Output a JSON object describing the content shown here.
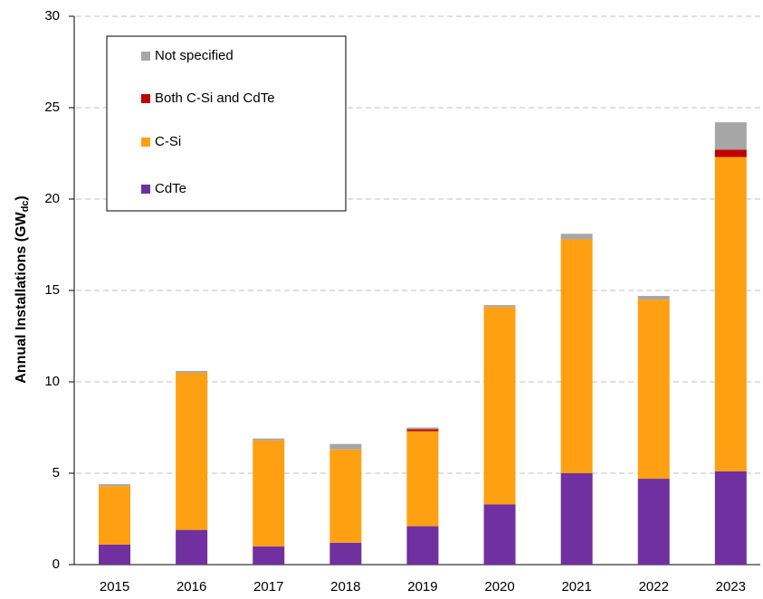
{
  "chart_data": {
    "type": "stacked_bar",
    "ylabel_parts": [
      "Annual Installations (GW",
      "dc",
      ")"
    ],
    "categories": [
      "2015",
      "2016",
      "2017",
      "2018",
      "2019",
      "2020",
      "2021",
      "2022",
      "2023"
    ],
    "series": [
      {
        "name": "CdTe",
        "color": "#7030a0",
        "values": [
          1.1,
          1.9,
          1.0,
          1.2,
          2.1,
          3.3,
          5.0,
          4.7,
          5.1
        ]
      },
      {
        "name": "C-Si",
        "color": "#ffa013",
        "values": [
          3.2,
          8.6,
          5.8,
          5.1,
          5.2,
          10.8,
          12.8,
          9.8,
          17.2
        ]
      },
      {
        "name": "Both C-Si and CdTe",
        "color": "#c00000",
        "values": [
          0,
          0,
          0,
          0,
          0.1,
          0,
          0,
          0,
          0.4
        ]
      },
      {
        "name": "Not specified",
        "color": "#a6a6a6",
        "values": [
          0.1,
          0.1,
          0.1,
          0.3,
          0.1,
          0.1,
          0.3,
          0.2,
          1.5
        ]
      }
    ],
    "ylim": [
      0,
      30
    ],
    "yticks": [
      0,
      5,
      10,
      15,
      20,
      25,
      30
    ],
    "grid": true,
    "legend": "upper left"
  }
}
